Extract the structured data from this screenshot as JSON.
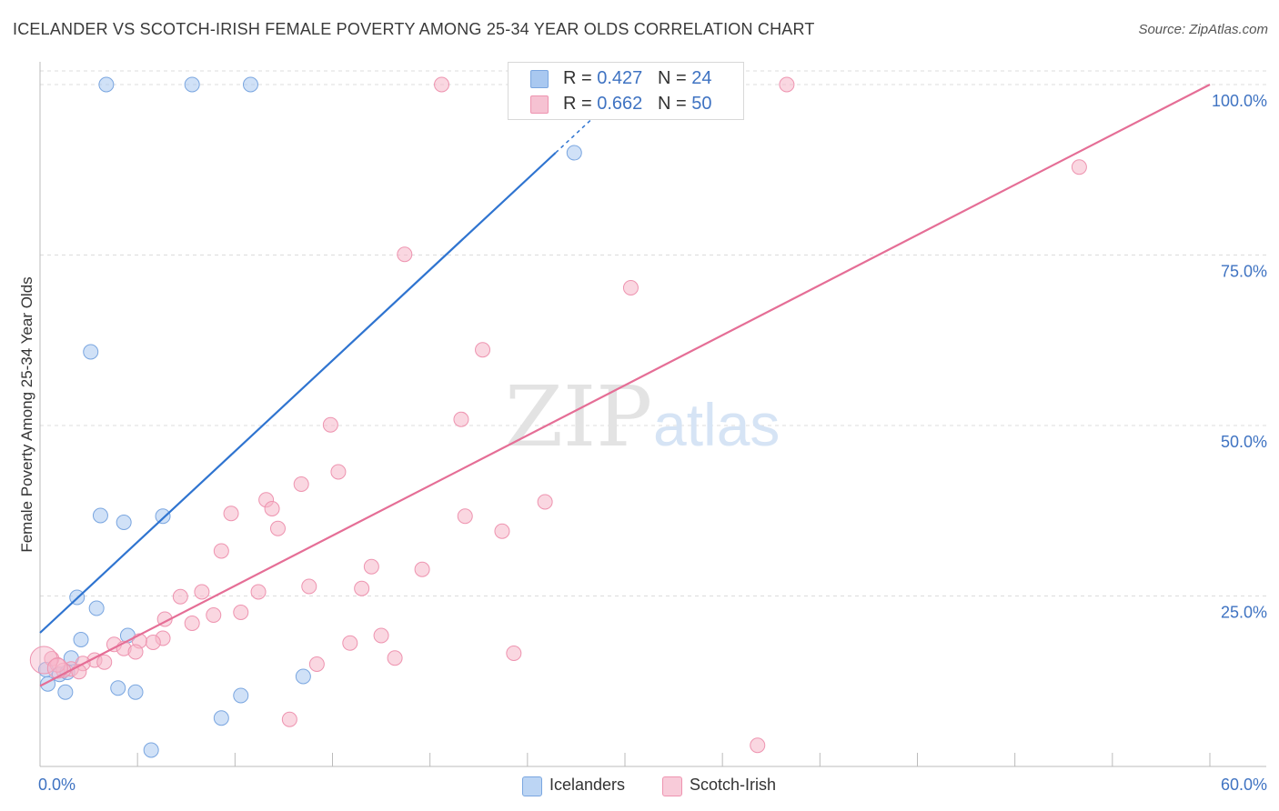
{
  "header": {
    "title": "ICELANDER VS SCOTCH-IRISH FEMALE POVERTY AMONG 25-34 YEAR OLDS CORRELATION CHART",
    "source": "Source: ZipAtlas.com"
  },
  "watermark": {
    "zip": "ZIP",
    "atlas": "atlas"
  },
  "legend": {
    "series": [
      {
        "r_label": "R = ",
        "r_value": "0.427",
        "n_label": "N = ",
        "n_value": "24",
        "color": "#a9c8f0"
      },
      {
        "r_label": "R = ",
        "r_value": "0.662",
        "n_label": "N = ",
        "n_value": "50",
        "color": "#f6b6c9"
      }
    ]
  },
  "bottom_legend": [
    {
      "label": "Icelanders",
      "color": "#a9c8f0"
    },
    {
      "label": "Scotch-Irish",
      "color": "#f6b6c9"
    }
  ],
  "chart_data": {
    "type": "scatter",
    "title": "ICELANDER VS SCOTCH-IRISH FEMALE POVERTY AMONG 25-34 YEAR OLDS CORRELATION CHART",
    "xlabel": "",
    "ylabel": "Female Poverty Among 25-34 Year Olds",
    "xlim": [
      0,
      60
    ],
    "ylim": [
      0,
      102
    ],
    "x_tick_labels": [
      "0.0%",
      "60.0%"
    ],
    "y_ticks": [
      25,
      50,
      75,
      100
    ],
    "y_tick_labels": [
      "25.0%",
      "50.0%",
      "75.0%",
      "100.0%"
    ],
    "grid": true,
    "legend_position": "top-center",
    "series": [
      {
        "name": "Icelanders",
        "color": "#a9c8f0",
        "stroke": "#7aa6e0",
        "trend_color": "#2f74d0",
        "points": [
          [
            3.4,
            100
          ],
          [
            7.8,
            100
          ],
          [
            10.8,
            100
          ],
          [
            27.4,
            90
          ],
          [
            2.6,
            60.8
          ],
          [
            3.1,
            36.8
          ],
          [
            4.3,
            35.8
          ],
          [
            6.3,
            36.7
          ],
          [
            1.9,
            24.8
          ],
          [
            2.9,
            23.2
          ],
          [
            4.5,
            19.2
          ],
          [
            2.1,
            18.6
          ],
          [
            1.6,
            15.9
          ],
          [
            1.0,
            13.5
          ],
          [
            1.4,
            13.8
          ],
          [
            0.4,
            12.1
          ],
          [
            1.3,
            10.9
          ],
          [
            4.0,
            11.5
          ],
          [
            4.9,
            10.9
          ],
          [
            10.3,
            10.4
          ],
          [
            13.5,
            13.2
          ],
          [
            9.3,
            7.1
          ],
          [
            5.7,
            2.4
          ],
          [
            0.3,
            14.2
          ]
        ],
        "trend": {
          "x": [
            0,
            30.2
          ],
          "y": [
            19.6,
            100
          ]
        }
      },
      {
        "name": "Scotch-Irish",
        "color": "#f6b6c9",
        "stroke": "#ee94b0",
        "trend_color": "#e56e96",
        "points": [
          [
            20.6,
            100
          ],
          [
            38.3,
            100
          ],
          [
            53.3,
            87.9
          ],
          [
            18.7,
            75.1
          ],
          [
            30.3,
            70.2
          ],
          [
            22.7,
            61.1
          ],
          [
            14.9,
            50.1
          ],
          [
            21.6,
            50.9
          ],
          [
            15.3,
            43.2
          ],
          [
            13.4,
            41.4
          ],
          [
            11.6,
            39.1
          ],
          [
            11.9,
            37.8
          ],
          [
            9.8,
            37.1
          ],
          [
            21.8,
            36.7
          ],
          [
            25.9,
            38.8
          ],
          [
            23.7,
            34.5
          ],
          [
            12.2,
            34.9
          ],
          [
            9.3,
            31.6
          ],
          [
            17.0,
            29.3
          ],
          [
            19.6,
            28.9
          ],
          [
            13.8,
            26.4
          ],
          [
            16.5,
            26.1
          ],
          [
            11.2,
            25.6
          ],
          [
            8.3,
            25.6
          ],
          [
            7.2,
            24.9
          ],
          [
            10.3,
            22.6
          ],
          [
            8.9,
            22.2
          ],
          [
            6.4,
            21.6
          ],
          [
            7.8,
            21.0
          ],
          [
            6.3,
            18.8
          ],
          [
            17.5,
            19.2
          ],
          [
            15.9,
            18.1
          ],
          [
            5.8,
            18.2
          ],
          [
            5.1,
            18.4
          ],
          [
            3.8,
            17.9
          ],
          [
            4.3,
            17.3
          ],
          [
            4.9,
            16.8
          ],
          [
            24.3,
            16.6
          ],
          [
            18.2,
            15.9
          ],
          [
            14.2,
            15.0
          ],
          [
            2.8,
            15.6
          ],
          [
            3.3,
            15.3
          ],
          [
            2.2,
            15.1
          ],
          [
            1.6,
            14.3
          ],
          [
            2.0,
            13.9
          ],
          [
            1.2,
            14.1
          ],
          [
            0.6,
            15.8
          ],
          [
            0.9,
            14.9
          ],
          [
            12.8,
            6.9
          ],
          [
            36.8,
            3.1
          ]
        ],
        "trend": {
          "x": [
            0,
            60
          ],
          "y": [
            11.8,
            100
          ]
        }
      }
    ]
  }
}
